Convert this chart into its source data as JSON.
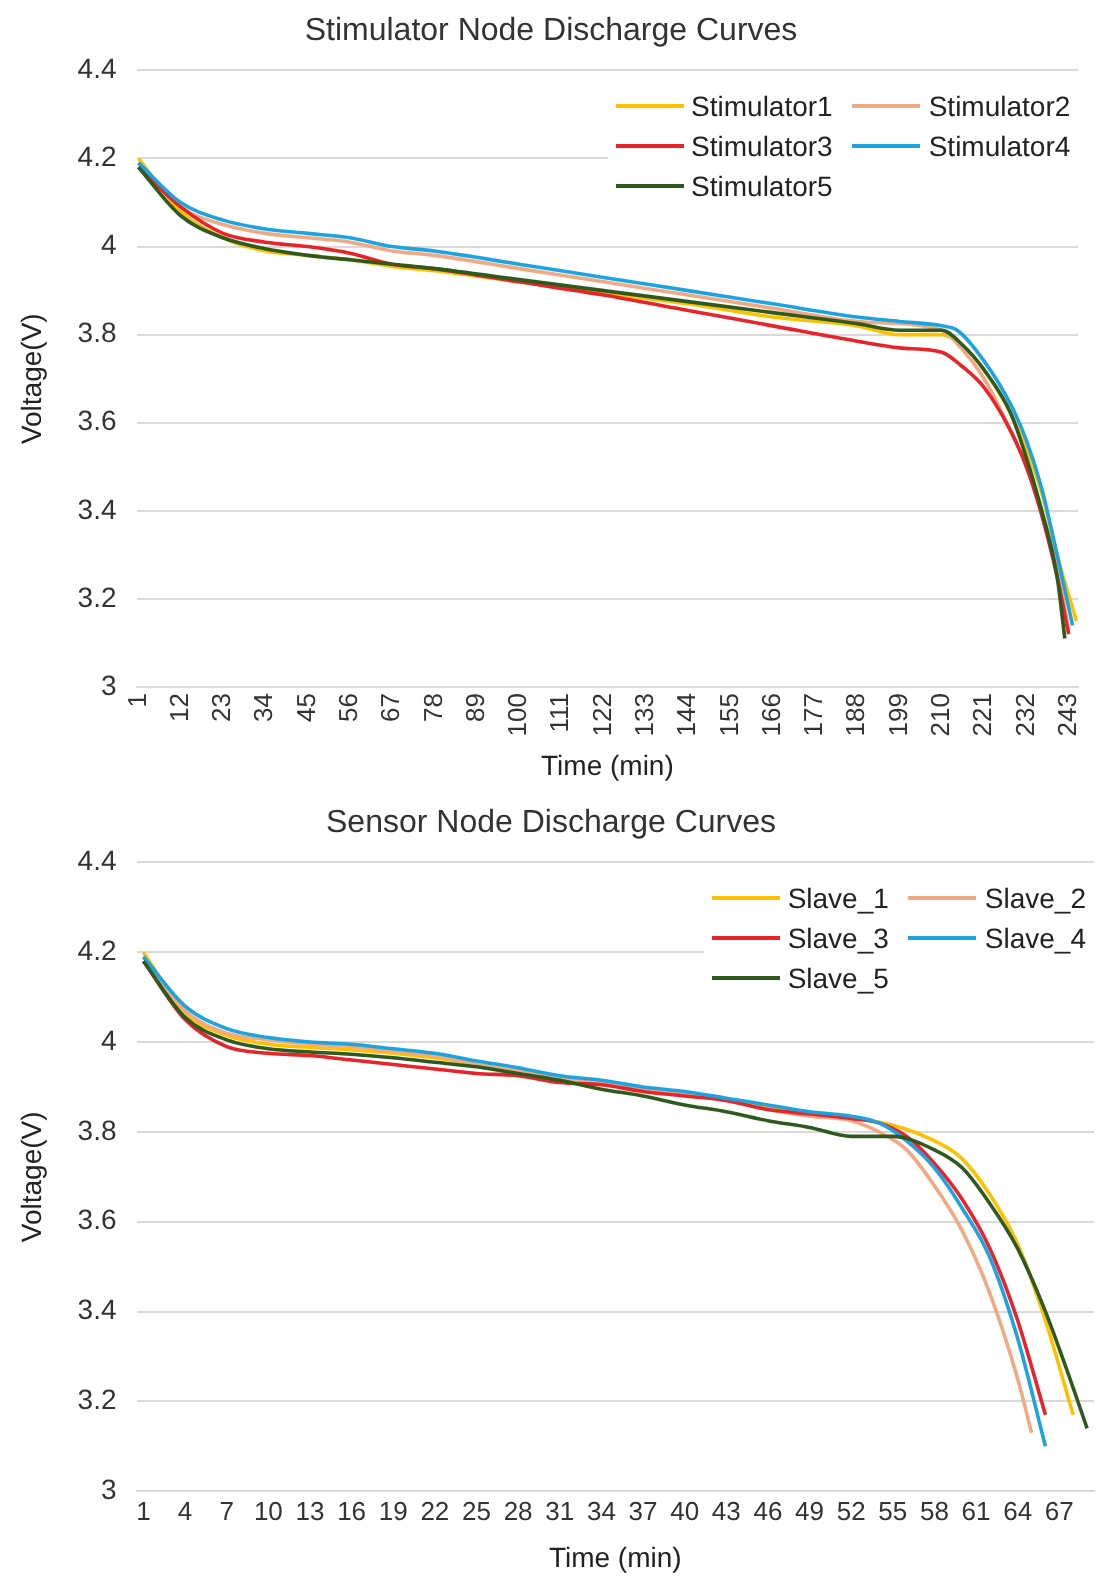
{
  "chart_data": [
    {
      "type": "line",
      "title": "Stimulator Node Discharge Curves",
      "xlabel": "Time (min)",
      "ylabel": "Voltage(V)",
      "xlim": [
        0.5,
        245.5
      ],
      "xticks": [
        1,
        12,
        23,
        34,
        45,
        56,
        67,
        78,
        89,
        100,
        111,
        122,
        133,
        144,
        155,
        166,
        177,
        188,
        199,
        210,
        221,
        232,
        243
      ],
      "ylim": [
        3,
        4.4
      ],
      "yticks": [
        3,
        3.2,
        3.4,
        3.6,
        3.8,
        4,
        4.2,
        4.4
      ],
      "grid": "y",
      "legend": "top right",
      "marker": "none",
      "line_style": "solid",
      "series": [
        {
          "name": "Stimulator1",
          "color": "#ffc000",
          "x": [
            1,
            12,
            23,
            34,
            45,
            56,
            67,
            78,
            100,
            122,
            144,
            166,
            188,
            199,
            210,
            216,
            221,
            228,
            232,
            236,
            240,
            245
          ],
          "values": [
            4.2,
            4.08,
            4.02,
            3.99,
            3.98,
            3.97,
            3.955,
            3.945,
            3.92,
            3.895,
            3.87,
            3.84,
            3.82,
            3.8,
            3.8,
            3.77,
            3.72,
            3.62,
            3.54,
            3.44,
            3.3,
            3.15
          ]
        },
        {
          "name": "Stimulator2",
          "color": "#f1a983",
          "x": [
            1,
            12,
            23,
            34,
            45,
            56,
            67,
            78,
            100,
            122,
            144,
            166,
            188,
            210,
            214,
            221,
            228,
            232,
            236,
            240,
            243
          ],
          "values": [
            4.19,
            4.09,
            4.05,
            4.03,
            4.02,
            4.01,
            3.99,
            3.98,
            3.95,
            3.92,
            3.89,
            3.86,
            3.83,
            3.81,
            3.78,
            3.7,
            3.58,
            3.5,
            3.4,
            3.27,
            3.13
          ]
        },
        {
          "name": "Stimulator3",
          "color": "#e8232a",
          "x": [
            1,
            12,
            23,
            34,
            45,
            56,
            67,
            78,
            100,
            122,
            144,
            166,
            188,
            199,
            210,
            215,
            221,
            228,
            232,
            236,
            240,
            243
          ],
          "values": [
            4.18,
            4.09,
            4.03,
            4.01,
            4.0,
            3.985,
            3.96,
            3.95,
            3.92,
            3.89,
            3.855,
            3.82,
            3.785,
            3.77,
            3.76,
            3.73,
            3.68,
            3.58,
            3.5,
            3.39,
            3.25,
            3.12
          ]
        },
        {
          "name": "Stimulator4",
          "color": "#1ca4e0",
          "x": [
            1,
            12,
            23,
            34,
            45,
            56,
            67,
            78,
            100,
            122,
            144,
            166,
            188,
            199,
            210,
            214,
            221,
            228,
            232,
            236,
            240,
            244
          ],
          "values": [
            4.19,
            4.1,
            4.06,
            4.04,
            4.03,
            4.02,
            4.0,
            3.99,
            3.96,
            3.93,
            3.9,
            3.87,
            3.84,
            3.83,
            3.82,
            3.81,
            3.74,
            3.64,
            3.56,
            3.45,
            3.3,
            3.14
          ]
        },
        {
          "name": "Stimulator5",
          "color": "#2e5a1e",
          "x": [
            1,
            12,
            23,
            34,
            45,
            56,
            67,
            78,
            100,
            122,
            144,
            166,
            188,
            199,
            210,
            215,
            221,
            228,
            232,
            236,
            240,
            242
          ],
          "values": [
            4.18,
            4.07,
            4.02,
            3.995,
            3.98,
            3.97,
            3.96,
            3.95,
            3.925,
            3.9,
            3.875,
            3.85,
            3.825,
            3.81,
            3.81,
            3.78,
            3.72,
            3.62,
            3.52,
            3.4,
            3.25,
            3.11
          ]
        }
      ]
    },
    {
      "type": "line",
      "title": "Sensor Node Discharge Curves",
      "xlabel": "Time (min)",
      "ylabel": "Voltage(V)",
      "xlim": [
        0.5,
        69.5
      ],
      "xticks": [
        1,
        4,
        7,
        10,
        13,
        16,
        19,
        22,
        25,
        28,
        31,
        34,
        37,
        40,
        43,
        46,
        49,
        52,
        55,
        58,
        61,
        64,
        67
      ],
      "ylim": [
        3,
        4.4
      ],
      "yticks": [
        3,
        3.2,
        3.4,
        3.6,
        3.8,
        4,
        4.2,
        4.4
      ],
      "grid": "y",
      "legend": "top right",
      "marker": "none",
      "line_style": "solid",
      "series": [
        {
          "name": "Slave_1",
          "color": "#ffc000",
          "x": [
            1,
            4,
            7,
            10,
            13,
            16,
            19,
            22,
            25,
            28,
            31,
            34,
            37,
            40,
            43,
            46,
            49,
            52,
            55,
            58,
            60,
            62,
            64,
            66,
            68
          ],
          "values": [
            4.2,
            4.065,
            4.015,
            3.995,
            3.988,
            3.983,
            3.975,
            3.965,
            3.95,
            3.935,
            3.92,
            3.91,
            3.895,
            3.885,
            3.87,
            3.855,
            3.84,
            3.83,
            3.815,
            3.78,
            3.74,
            3.66,
            3.55,
            3.38,
            3.17
          ]
        },
        {
          "name": "Slave_2",
          "color": "#f1a983",
          "x": [
            1,
            4,
            7,
            10,
            13,
            16,
            19,
            22,
            25,
            28,
            31,
            34,
            37,
            40,
            43,
            46,
            49,
            52,
            54,
            56,
            58,
            60,
            62,
            64,
            65
          ],
          "values": [
            4.19,
            4.07,
            4.02,
            4.005,
            3.995,
            3.99,
            3.98,
            3.97,
            3.95,
            3.935,
            3.92,
            3.91,
            3.895,
            3.885,
            3.87,
            3.85,
            3.835,
            3.825,
            3.8,
            3.76,
            3.68,
            3.58,
            3.44,
            3.25,
            3.13
          ]
        },
        {
          "name": "Slave_3",
          "color": "#e8232a",
          "x": [
            1,
            4,
            7,
            10,
            13,
            16,
            19,
            22,
            25,
            28,
            31,
            34,
            37,
            40,
            43,
            46,
            49,
            52,
            54,
            56,
            58,
            60,
            62,
            64,
            66
          ],
          "values": [
            4.18,
            4.05,
            3.99,
            3.975,
            3.97,
            3.96,
            3.95,
            3.94,
            3.93,
            3.925,
            3.91,
            3.905,
            3.89,
            3.88,
            3.87,
            3.85,
            3.84,
            3.83,
            3.82,
            3.79,
            3.73,
            3.65,
            3.54,
            3.38,
            3.17
          ]
        },
        {
          "name": "Slave_4",
          "color": "#1ca4e0",
          "x": [
            1,
            4,
            7,
            10,
            13,
            16,
            19,
            22,
            25,
            28,
            31,
            34,
            37,
            40,
            43,
            46,
            49,
            52,
            54,
            56,
            58,
            60,
            62,
            64,
            66
          ],
          "values": [
            4.19,
            4.08,
            4.03,
            4.01,
            4.0,
            3.995,
            3.985,
            3.975,
            3.958,
            3.943,
            3.925,
            3.915,
            3.9,
            3.89,
            3.875,
            3.86,
            3.845,
            3.835,
            3.82,
            3.78,
            3.72,
            3.63,
            3.52,
            3.34,
            3.1
          ]
        },
        {
          "name": "Slave_5",
          "color": "#2e5a1e",
          "x": [
            1,
            4,
            7,
            10,
            13,
            16,
            19,
            22,
            25,
            28,
            31,
            34,
            37,
            40,
            43,
            46,
            49,
            52,
            55,
            58,
            60,
            62,
            64,
            66,
            68,
            69
          ],
          "values": [
            4.18,
            4.055,
            4.005,
            3.985,
            3.978,
            3.973,
            3.965,
            3.955,
            3.945,
            3.93,
            3.915,
            3.895,
            3.88,
            3.86,
            3.845,
            3.825,
            3.81,
            3.79,
            3.79,
            3.76,
            3.72,
            3.64,
            3.54,
            3.4,
            3.23,
            3.14
          ]
        }
      ]
    }
  ]
}
